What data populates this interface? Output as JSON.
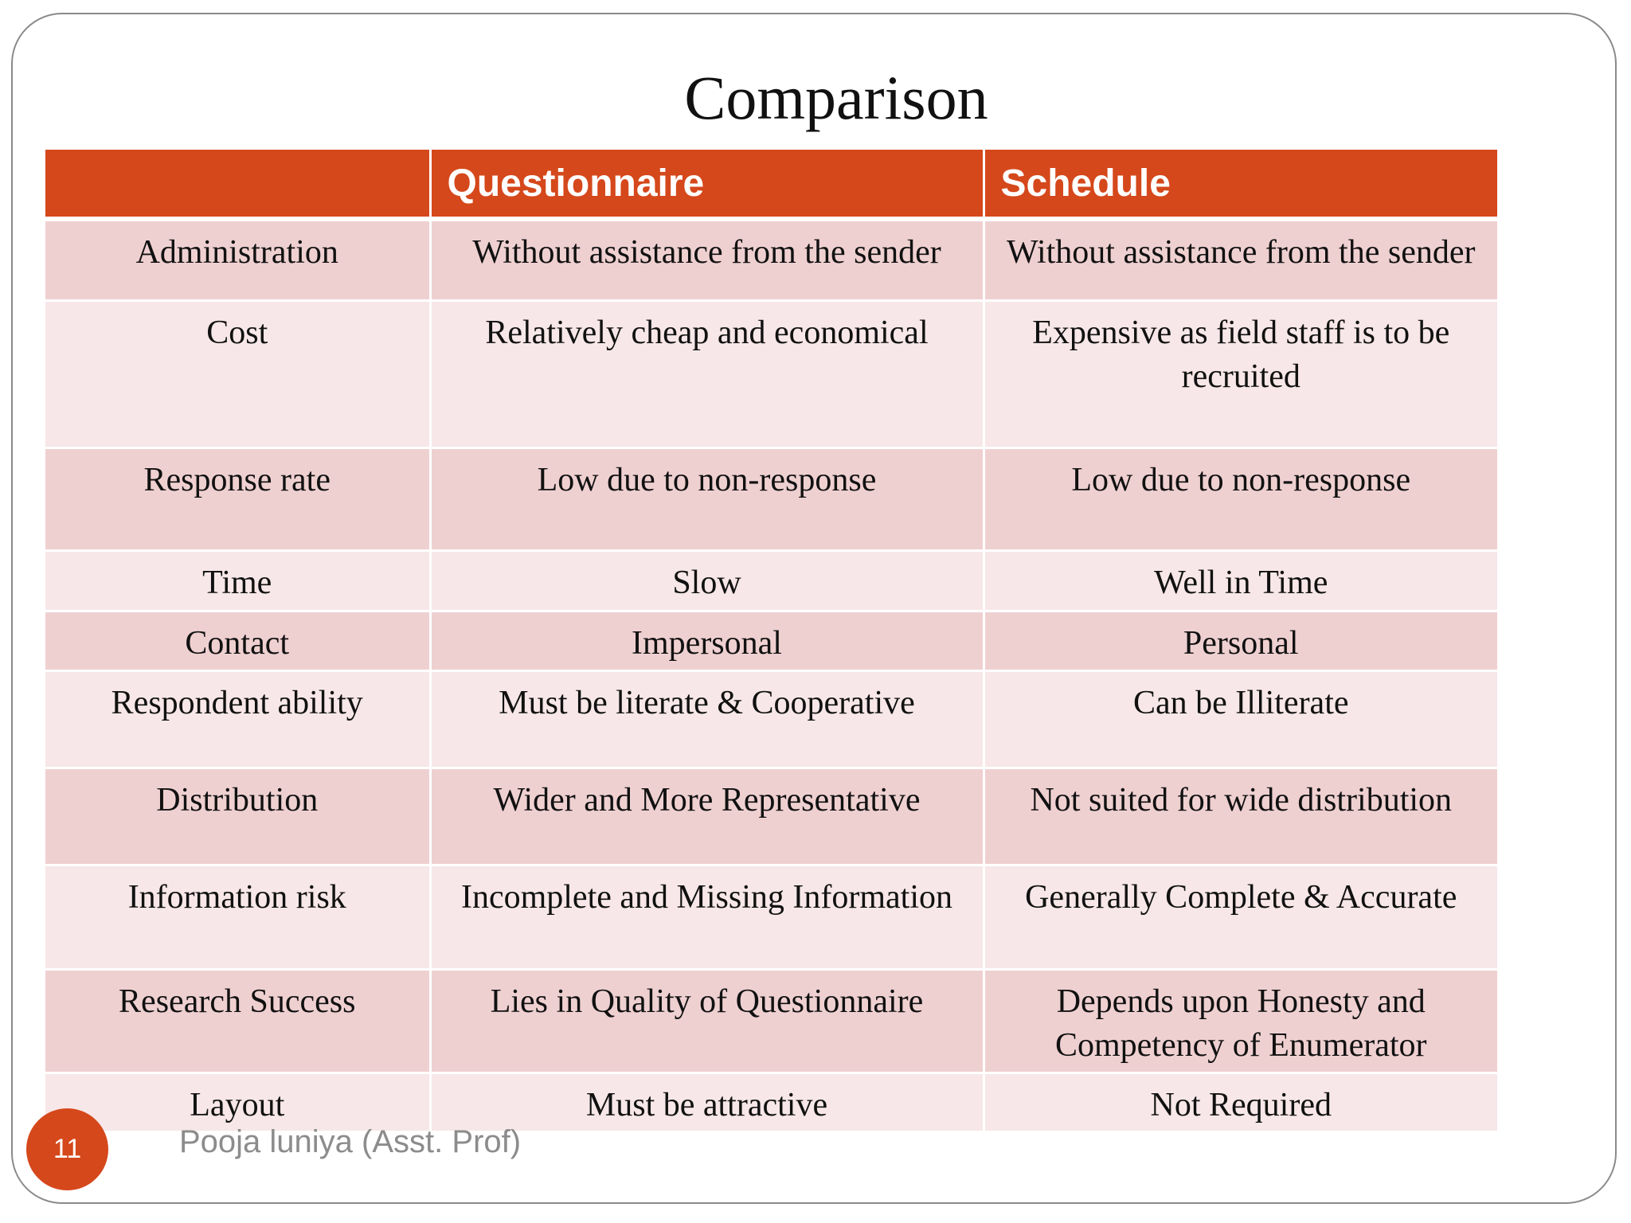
{
  "slide": {
    "title": "Comparison",
    "page_number": "11",
    "author": "Pooja luniya (Asst. Prof)"
  },
  "colors": {
    "header_bg": "#d5481b",
    "row_dark": "#efd0d1",
    "row_light": "#f7e7e8",
    "badge": "#d5481b"
  },
  "table": {
    "headers": [
      "",
      "Questionnaire",
      "Schedule"
    ],
    "rows": [
      {
        "label": "Administration",
        "questionnaire": "Without assistance from the sender",
        "schedule": "Without assistance from the sender"
      },
      {
        "label": "Cost",
        "questionnaire": "Relatively cheap and economical",
        "schedule": "Expensive as field staff is to be recruited"
      },
      {
        "label": "Response rate",
        "questionnaire": "Low due to non-response",
        "schedule": "Low due to non-response"
      },
      {
        "label": "Time",
        "questionnaire": "Slow",
        "schedule": "Well in Time"
      },
      {
        "label": "Contact",
        "questionnaire": "Impersonal",
        "schedule": "Personal"
      },
      {
        "label": "Respondent ability",
        "questionnaire": "Must be literate & Cooperative",
        "schedule": "Can be Illiterate"
      },
      {
        "label": "Distribution",
        "questionnaire": "Wider and More Representative",
        "schedule": "Not suited for wide distribution"
      },
      {
        "label": "Information risk",
        "questionnaire": "Incomplete and Missing Information",
        "schedule": "Generally Complete & Accurate"
      },
      {
        "label": "Research Success",
        "questionnaire": "Lies in Quality of Questionnaire",
        "schedule": "Depends upon Honesty and Competency of  Enumerator"
      },
      {
        "label": "Layout",
        "questionnaire": "Must be attractive",
        "schedule": "Not Required"
      }
    ]
  }
}
